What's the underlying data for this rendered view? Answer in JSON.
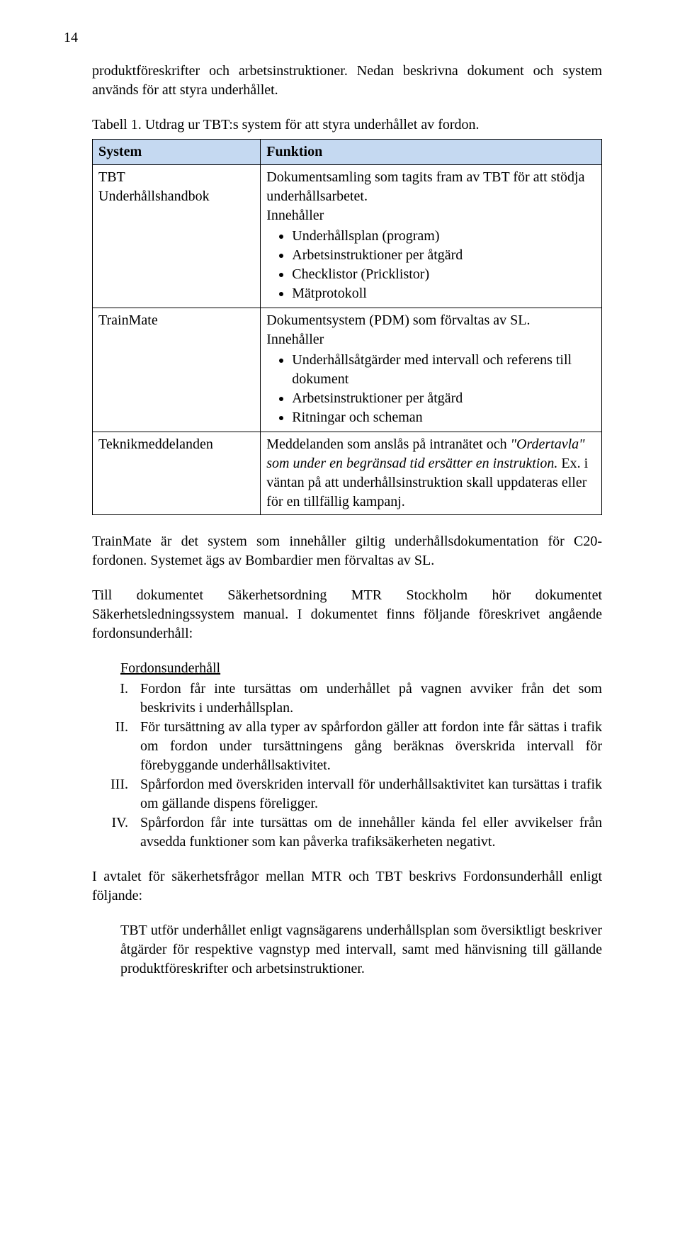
{
  "page_number": "14",
  "intro_para": "produktföreskrifter och arbetsinstruktioner. Nedan beskrivna dokument och system används för att styra underhållet.",
  "table_caption": "Tabell 1. Utdrag ur TBT:s system för att styra underhållet av fordon.",
  "table": {
    "header_col1": "System",
    "header_col2": "Funktion",
    "header_bg": "#c5d9f1",
    "rows": [
      {
        "c1_line1": "TBT",
        "c1_line2": "Underhållshandbok",
        "c2_intro": "Dokumentsamling som tagits fram av TBT för att stödja underhållsarbetet.",
        "c2_inneh": "Innehåller",
        "bullets": [
          "Underhållsplan (program)",
          "Arbetsinstruktioner per åtgärd",
          "Checklistor (Pricklistor)",
          "Mätprotokoll"
        ]
      },
      {
        "c1_line1": "TrainMate",
        "c2_intro": "Dokumentsystem (PDM) som förvaltas av SL.",
        "c2_inneh": "Innehåller",
        "bullets": [
          "Underhållsåtgärder med intervall och referens till dokument",
          "Arbetsinstruktioner per åtgärd",
          "Ritningar och scheman"
        ]
      },
      {
        "c1_line1": "Teknikmeddelanden",
        "c2_pre": "Meddelanden som anslås på intranätet och ",
        "c2_italic": "\"Ordertavla\" som under en begränsad tid ersätter en instruktion.",
        "c2_post": " Ex. i väntan på att underhållsinstruktion skall uppdateras eller för en tillfällig kampanj."
      }
    ]
  },
  "para_trainmate": "TrainMate är det system som innehåller giltig underhållsdokumentation för C20-fordonen. Systemet ägs av Bombardier men förvaltas av SL.",
  "para_doc": "Till dokumentet Säkerhetsordning MTR Stockholm hör dokumentet Säkerhetsledningssystem manual. I dokumentet finns följande föreskrivet angående fordonsunderhåll:",
  "list_title": "Fordonsunderhåll",
  "roman_list": [
    "Fordon får inte tursättas om underhållet på vagnen avviker från det som beskrivits i underhållsplan.",
    "För tursättning av alla typer av spårfordon gäller att fordon inte får sättas i trafik om fordon under tursättningens gång beräknas överskrida intervall för förebyggande underhållsaktivitet.",
    "Spårfordon med överskriden intervall för underhållsaktivitet kan tursättas i trafik om gällande dispens föreligger.",
    "Spårfordon får inte tursättas om de innehåller kända fel eller avvikelser från avsedda funktioner som kan påverka trafiksäkerheten negativt."
  ],
  "para_avtal": "I avtalet för säkerhetsfrågor mellan MTR och TBT beskrivs Fordonsunderhåll enligt följande:",
  "para_indent": "TBT utför underhållet enligt vagnsägarens underhållsplan som översiktligt beskriver åtgärder för respektive vagnstyp med intervall, samt med hänvisning till gällande produktföreskrifter och arbetsinstruktioner."
}
